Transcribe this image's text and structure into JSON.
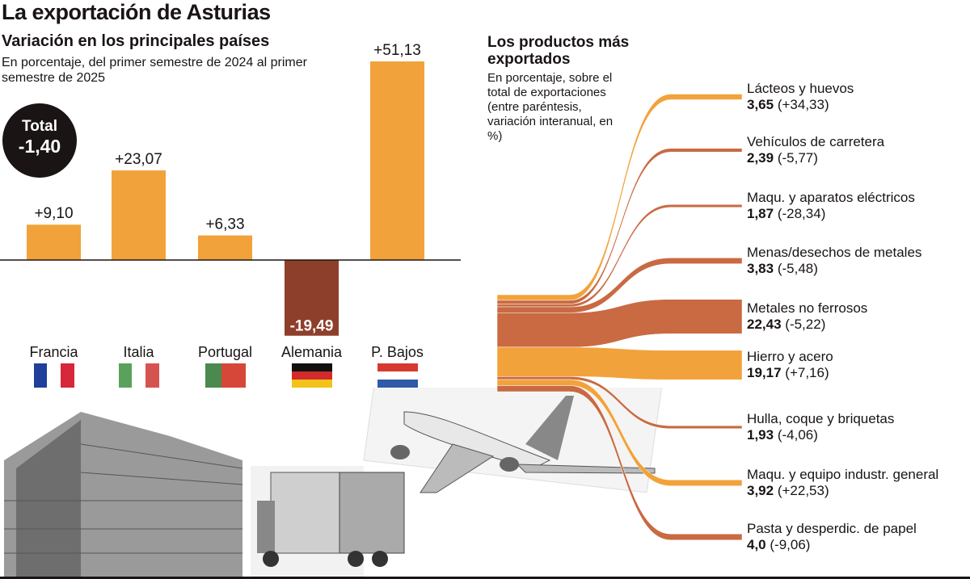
{
  "title": "La exportación de Asturias",
  "countries_panel": {
    "title": "Variación en los principales países",
    "description": "En porcentaje, del primer semestre de 2024 al primer semestre de  2025",
    "total_label": "Total",
    "total_value": "-1,40"
  },
  "products_panel": {
    "title": "Los productos más exportados",
    "description": "En porcentaje, sobre el total de exportaciones (entre paréntesis, variación interanual, en %)"
  },
  "colors": {
    "positive": "#f2a23a",
    "negative_bar": "#8e3f2b",
    "negative_flow": "#c96a42",
    "text": "#1a1414"
  },
  "chart_data": [
    {
      "type": "bar",
      "categories": [
        "Francia",
        "Italia",
        "Portugal",
        "Alemania",
        "P. Bajos"
      ],
      "values": [
        9.1,
        23.07,
        6.33,
        -19.49,
        51.13
      ],
      "data_labels": [
        "+9,10",
        "+23,07",
        "+6,33",
        "-19,49",
        "+51,13"
      ],
      "flags": [
        "france",
        "italy",
        "portugal",
        "germany",
        "netherlands"
      ]
    },
    {
      "type": "sankey",
      "items": [
        {
          "name": "Lácteos y huevos",
          "share": "3,65",
          "change": "(+34,33)",
          "share_value": 3.65,
          "change_value": 34.33
        },
        {
          "name": "Vehículos de carretera",
          "share": "2,39",
          "change": "(-5,77)",
          "share_value": 2.39,
          "change_value": -5.77
        },
        {
          "name": "Maqu. y aparatos eléctricos",
          "share": "1,87",
          "change": "(-28,34)",
          "share_value": 1.87,
          "change_value": -28.34
        },
        {
          "name": "Menas/desechos de metales",
          "share": "3,83",
          "change": "(-5,48)",
          "share_value": 3.83,
          "change_value": -5.48
        },
        {
          "name": "Metales no ferrosos",
          "share": "22,43",
          "change": "(-5,22)",
          "share_value": 22.43,
          "change_value": -5.22
        },
        {
          "name": "Hierro y acero",
          "share": "19,17",
          "change": "(+7,16)",
          "share_value": 19.17,
          "change_value": 7.16
        },
        {
          "name": "Hulla, coque y briquetas",
          "share": "1,93",
          "change": "(-4,06)",
          "share_value": 1.93,
          "change_value": -4.06
        },
        {
          "name": "Maqu. y equipo industr. general",
          "share": "3,92",
          "change": "(+22,53)",
          "share_value": 3.92,
          "change_value": 22.53
        },
        {
          "name": "Pasta y desperdic. de papel",
          "share": "4,0",
          "change": "(-9,06)",
          "share_value": 4.0,
          "change_value": -9.06
        }
      ]
    }
  ]
}
